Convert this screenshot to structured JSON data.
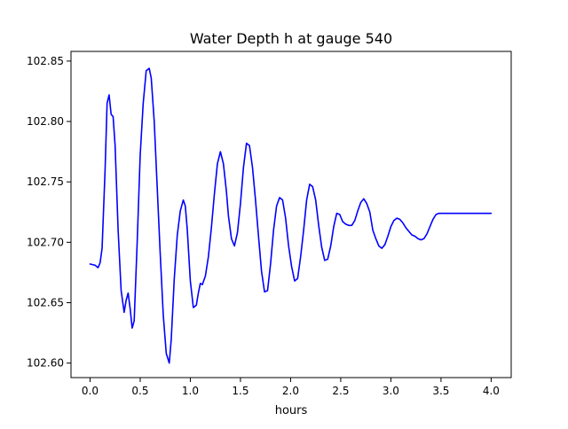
{
  "chart_data": {
    "type": "line",
    "title": "Water Depth h at gauge 540",
    "xlabel": "hours",
    "ylabel": "",
    "xlim": [
      -0.19,
      4.2
    ],
    "ylim": [
      102.588,
      102.858
    ],
    "xticks": [
      0.0,
      0.5,
      1.0,
      1.5,
      2.0,
      2.5,
      3.0,
      3.5,
      4.0
    ],
    "xtick_labels": [
      "0.0",
      "0.5",
      "1.0",
      "1.5",
      "2.0",
      "2.5",
      "3.0",
      "3.5",
      "4.0"
    ],
    "yticks": [
      102.6,
      102.65,
      102.7,
      102.75,
      102.8,
      102.85
    ],
    "ytick_labels": [
      "102.60",
      "102.65",
      "102.70",
      "102.75",
      "102.80",
      "102.85"
    ],
    "grid": false,
    "line_color": "#0000ff",
    "series": [
      {
        "x": [
          0.0,
          0.05,
          0.08,
          0.1,
          0.12,
          0.15,
          0.17,
          0.19,
          0.21,
          0.23,
          0.25,
          0.28,
          0.31,
          0.34,
          0.36,
          0.38,
          0.4,
          0.42,
          0.44,
          0.47,
          0.5,
          0.53,
          0.56,
          0.59,
          0.61,
          0.64,
          0.67,
          0.7,
          0.73,
          0.76,
          0.79,
          0.81,
          0.84,
          0.87,
          0.9,
          0.93,
          0.95,
          0.97,
          1.0,
          1.03,
          1.06,
          1.08,
          1.1,
          1.12,
          1.15,
          1.18,
          1.21,
          1.24,
          1.27,
          1.3,
          1.33,
          1.36,
          1.38,
          1.41,
          1.44,
          1.47,
          1.5,
          1.53,
          1.56,
          1.59,
          1.62,
          1.65,
          1.68,
          1.71,
          1.74,
          1.77,
          1.8,
          1.83,
          1.86,
          1.89,
          1.92,
          1.95,
          1.98,
          2.01,
          2.04,
          2.07,
          2.1,
          2.13,
          2.16,
          2.19,
          2.22,
          2.25,
          2.28,
          2.31,
          2.34,
          2.37,
          2.4,
          2.43,
          2.46,
          2.49,
          2.52,
          2.55,
          2.58,
          2.61,
          2.64,
          2.67,
          2.7,
          2.73,
          2.76,
          2.79,
          2.82,
          2.85,
          2.88,
          2.91,
          2.94,
          2.97,
          3.0,
          3.03,
          3.06,
          3.09,
          3.12,
          3.15,
          3.18,
          3.21,
          3.24,
          3.27,
          3.3,
          3.33,
          3.36,
          3.39,
          3.42,
          3.45,
          3.48,
          3.51,
          3.54,
          3.57,
          3.6,
          3.63,
          3.66,
          3.69,
          3.72,
          3.75,
          3.78,
          3.81,
          3.84,
          3.87,
          3.9,
          3.93,
          3.96,
          4.0
        ],
        "values": [
          102.682,
          102.681,
          102.679,
          102.683,
          102.695,
          102.76,
          102.815,
          102.822,
          102.806,
          102.804,
          102.78,
          102.71,
          102.66,
          102.642,
          102.652,
          102.658,
          102.645,
          102.629,
          102.635,
          102.7,
          102.772,
          102.815,
          102.842,
          102.844,
          102.836,
          102.8,
          102.745,
          102.69,
          102.64,
          102.608,
          102.6,
          102.62,
          102.67,
          102.706,
          102.726,
          102.735,
          102.73,
          102.71,
          102.668,
          102.646,
          102.648,
          102.658,
          102.666,
          102.665,
          102.672,
          102.688,
          102.712,
          102.74,
          102.765,
          102.775,
          102.765,
          102.742,
          102.722,
          102.703,
          102.697,
          102.708,
          102.732,
          102.762,
          102.782,
          102.78,
          102.762,
          102.735,
          102.705,
          102.676,
          102.659,
          102.66,
          102.682,
          102.71,
          102.73,
          102.737,
          102.735,
          102.72,
          102.697,
          102.68,
          102.668,
          102.67,
          102.688,
          102.71,
          102.735,
          102.748,
          102.746,
          102.735,
          102.714,
          102.696,
          102.685,
          102.686,
          102.697,
          102.713,
          102.724,
          102.723,
          102.717,
          102.715,
          102.714,
          102.714,
          102.718,
          102.726,
          102.733,
          102.736,
          102.732,
          102.725,
          102.71,
          102.703,
          102.697,
          102.695,
          102.698,
          102.705,
          102.713,
          102.718,
          102.72,
          102.719,
          102.716,
          102.712,
          102.709,
          102.706,
          102.705,
          102.703,
          102.702,
          102.703,
          102.707,
          102.713,
          102.719,
          102.723,
          102.724,
          102.724,
          102.724,
          102.724,
          102.724,
          102.724,
          102.724,
          102.724,
          102.724,
          102.724,
          102.724,
          102.724,
          102.724,
          102.724,
          102.724,
          102.724,
          102.724,
          102.724
        ]
      }
    ]
  }
}
